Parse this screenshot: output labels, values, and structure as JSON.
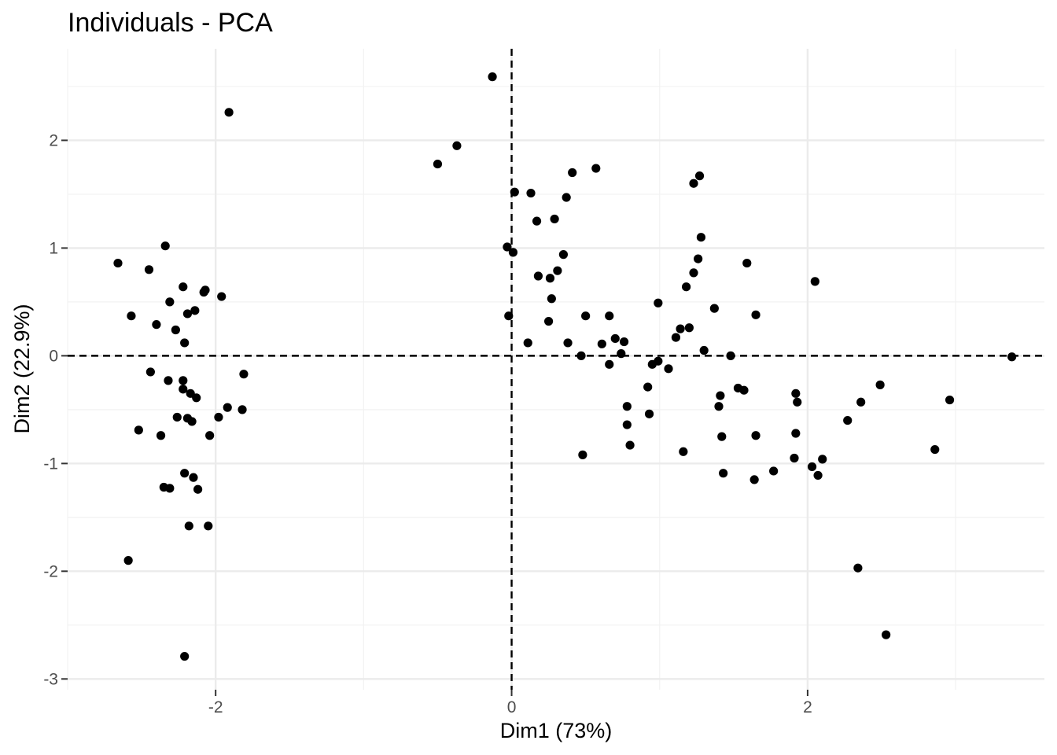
{
  "chart_data": {
    "type": "scatter",
    "title": "Individuals - PCA",
    "xlabel": "Dim1 (73%)",
    "ylabel": "Dim2 (22.9%)",
    "xlim": [
      -3.0,
      3.6
    ],
    "ylim": [
      -3.1,
      2.85
    ],
    "x_ticks": [
      -2,
      0,
      2
    ],
    "y_ticks": [
      2,
      1,
      0,
      -1,
      -2,
      -3
    ],
    "x_minor_ticks": [
      -3,
      -1,
      1,
      3
    ],
    "y_minor_ticks": [
      2.5,
      1.5,
      0.5,
      -0.5,
      -1.5,
      -2.5
    ],
    "grid": true,
    "reference_lines": {
      "x": 0,
      "y": 0,
      "style": "dashed"
    },
    "point_color": "#000000",
    "points": [
      [
        -1.91,
        2.26
      ],
      [
        -2.34,
        1.02
      ],
      [
        -2.66,
        0.86
      ],
      [
        -2.45,
        0.8
      ],
      [
        -2.22,
        0.64
      ],
      [
        -2.07,
        0.61
      ],
      [
        -2.08,
        0.59
      ],
      [
        -1.96,
        0.55
      ],
      [
        -2.31,
        0.5
      ],
      [
        -2.14,
        0.42
      ],
      [
        -2.19,
        0.39
      ],
      [
        -2.57,
        0.37
      ],
      [
        -2.4,
        0.29
      ],
      [
        -2.27,
        0.24
      ],
      [
        -2.21,
        0.12
      ],
      [
        -2.44,
        -0.15
      ],
      [
        -1.81,
        -0.17
      ],
      [
        -2.32,
        -0.23
      ],
      [
        -2.22,
        -0.23
      ],
      [
        -2.22,
        -0.31
      ],
      [
        -2.17,
        -0.35
      ],
      [
        -2.13,
        -0.39
      ],
      [
        -1.92,
        -0.48
      ],
      [
        -1.82,
        -0.5
      ],
      [
        -2.26,
        -0.57
      ],
      [
        -1.98,
        -0.57
      ],
      [
        -2.19,
        -0.58
      ],
      [
        -2.16,
        -0.61
      ],
      [
        -2.52,
        -0.69
      ],
      [
        -2.04,
        -0.74
      ],
      [
        -2.37,
        -0.74
      ],
      [
        -2.21,
        -1.09
      ],
      [
        -2.15,
        -1.13
      ],
      [
        -2.35,
        -1.22
      ],
      [
        -2.31,
        -1.23
      ],
      [
        -2.12,
        -1.24
      ],
      [
        -2.18,
        -1.58
      ],
      [
        -2.05,
        -1.58
      ],
      [
        -2.59,
        -1.9
      ],
      [
        -2.21,
        -2.79
      ],
      [
        -0.13,
        2.59
      ],
      [
        -0.37,
        1.95
      ],
      [
        -0.5,
        1.78
      ],
      [
        0.02,
        1.52
      ],
      [
        0.13,
        1.51
      ],
      [
        0.37,
        1.47
      ],
      [
        0.41,
        1.7
      ],
      [
        0.57,
        1.74
      ],
      [
        0.17,
        1.25
      ],
      [
        0.29,
        1.27
      ],
      [
        -0.03,
        1.01
      ],
      [
        0.01,
        0.96
      ],
      [
        0.35,
        0.94
      ],
      [
        0.31,
        0.79
      ],
      [
        0.18,
        0.74
      ],
      [
        0.26,
        0.72
      ],
      [
        0.27,
        0.53
      ],
      [
        -0.02,
        0.37
      ],
      [
        0.25,
        0.32
      ],
      [
        0.5,
        0.37
      ],
      [
        0.66,
        0.37
      ],
      [
        0.11,
        0.12
      ],
      [
        0.38,
        0.12
      ],
      [
        0.61,
        0.11
      ],
      [
        0.7,
        0.16
      ],
      [
        0.76,
        0.13
      ],
      [
        0.47,
        0.0
      ],
      [
        0.74,
        0.02
      ],
      [
        0.66,
        -0.08
      ],
      [
        0.95,
        -0.08
      ],
      [
        0.99,
        -0.05
      ],
      [
        1.06,
        -0.12
      ],
      [
        0.99,
        0.49
      ],
      [
        1.27,
        1.67
      ],
      [
        1.23,
        1.6
      ],
      [
        1.28,
        1.1
      ],
      [
        1.26,
        0.9
      ],
      [
        1.23,
        0.77
      ],
      [
        1.18,
        0.64
      ],
      [
        1.37,
        0.44
      ],
      [
        1.59,
        0.86
      ],
      [
        1.65,
        0.38
      ],
      [
        2.05,
        0.69
      ],
      [
        1.14,
        0.25
      ],
      [
        1.2,
        0.26
      ],
      [
        1.11,
        0.17
      ],
      [
        1.3,
        0.05
      ],
      [
        1.48,
        0.0
      ],
      [
        3.38,
        -0.01
      ],
      [
        0.92,
        -0.29
      ],
      [
        0.78,
        -0.47
      ],
      [
        0.93,
        -0.54
      ],
      [
        0.78,
        -0.64
      ],
      [
        0.8,
        -0.83
      ],
      [
        0.48,
        -0.92
      ],
      [
        1.16,
        -0.89
      ],
      [
        1.41,
        -0.37
      ],
      [
        1.4,
        -0.47
      ],
      [
        1.53,
        -0.3
      ],
      [
        1.57,
        -0.32
      ],
      [
        1.42,
        -0.75
      ],
      [
        1.65,
        -0.74
      ],
      [
        1.43,
        -1.09
      ],
      [
        1.64,
        -1.15
      ],
      [
        1.77,
        -1.07
      ],
      [
        1.92,
        -0.35
      ],
      [
        1.93,
        -0.43
      ],
      [
        1.92,
        -0.72
      ],
      [
        1.91,
        -0.95
      ],
      [
        2.03,
        -1.03
      ],
      [
        2.07,
        -1.11
      ],
      [
        2.1,
        -0.96
      ],
      [
        2.27,
        -0.6
      ],
      [
        2.36,
        -0.43
      ],
      [
        2.49,
        -0.27
      ],
      [
        2.96,
        -0.41
      ],
      [
        2.86,
        -0.87
      ],
      [
        2.34,
        -1.97
      ],
      [
        2.53,
        -2.59
      ]
    ]
  }
}
